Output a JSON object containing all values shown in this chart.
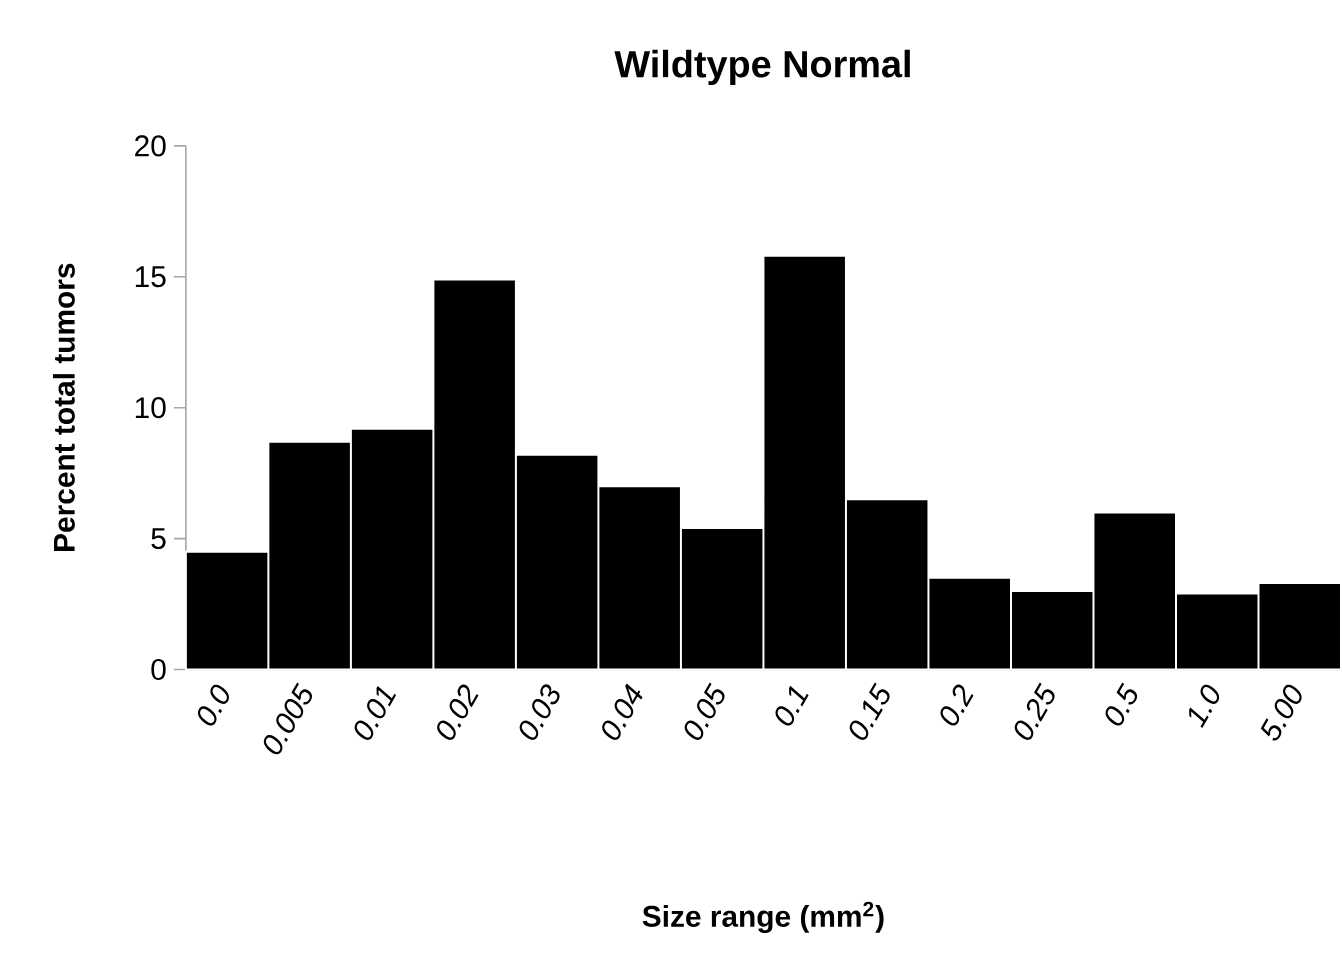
{
  "chart_data": {
    "type": "bar",
    "title": "Wildtype Normal",
    "xlabel": "Size range (mm$^{2}$)",
    "ylabel": "Percent total tumors",
    "categories": [
      "0.0",
      "0.005",
      "0.01",
      "0.02",
      "0.03",
      "0.04",
      "0.05",
      "0.1",
      "0.15",
      "0.2",
      "0.25",
      "0.5",
      "1.0",
      "5.00"
    ],
    "values": [
      4.5,
      8.7,
      9.2,
      14.9,
      8.2,
      7.0,
      5.4,
      15.8,
      6.5,
      3.5,
      3.0,
      6.0,
      2.9,
      3.3
    ],
    "color": "#000000",
    "ylim": [
      0,
      20
    ],
    "yticks": [
      0,
      5,
      10,
      15,
      20
    ]
  }
}
